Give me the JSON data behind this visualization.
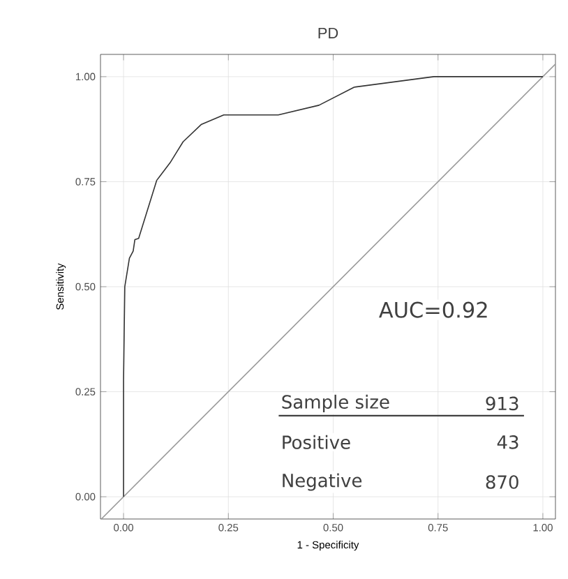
{
  "chart_data": {
    "type": "line",
    "title": "PD",
    "xlabel": "1 - Specificity",
    "ylabel": "Sensitivity",
    "xlim": [
      -0.055,
      1.03
    ],
    "ylim": [
      -0.053,
      1.053
    ],
    "xticks": [
      {
        "value": 0,
        "label": "0.00"
      },
      {
        "value": 0.25,
        "label": "0.25"
      },
      {
        "value": 0.5,
        "label": "0.50"
      },
      {
        "value": 0.75,
        "label": "0.75"
      },
      {
        "value": 1,
        "label": "1.00"
      }
    ],
    "yticks": [
      {
        "value": 0,
        "label": "0.00"
      },
      {
        "value": 0.25,
        "label": "0.25"
      },
      {
        "value": 0.5,
        "label": "0.50"
      },
      {
        "value": 0.75,
        "label": "0.75"
      },
      {
        "value": 1,
        "label": "1.00"
      }
    ],
    "grid": true,
    "series": [
      {
        "color": "#999999",
        "x": [
          -0.053,
          1.03
        ],
        "values": [
          -0.053,
          1.03
        ]
      },
      {
        "color": "#333333",
        "x": [
          0,
          0,
          0.003,
          0.014,
          0.023,
          0.027,
          0.036,
          0.079,
          0.111,
          0.142,
          0.185,
          0.239,
          0.369,
          0.466,
          0.55,
          0.74,
          1.0
        ],
        "values": [
          0,
          0.276,
          0.5,
          0.568,
          0.585,
          0.612,
          0.615,
          0.753,
          0.795,
          0.845,
          0.886,
          0.909,
          0.909,
          0.932,
          0.975,
          1.0,
          1.0
        ]
      }
    ],
    "annotations": [
      "AUC=0.92",
      "Sample size",
      "913",
      "Positive",
      "43",
      "Negative",
      "870"
    ]
  }
}
